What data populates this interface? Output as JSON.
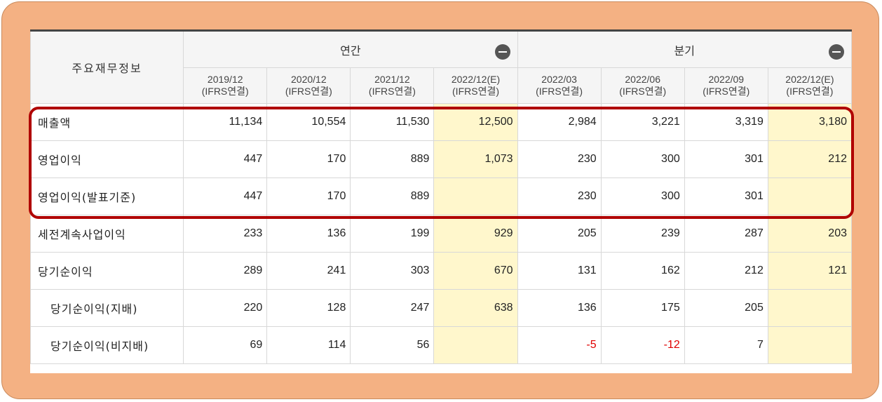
{
  "table": {
    "corner_label": "주요재무정보",
    "groups": [
      {
        "label": "연간"
      },
      {
        "label": "분기"
      }
    ],
    "columns": [
      {
        "period": "2019/12",
        "basis": "(IFRS연결)",
        "estimate": false
      },
      {
        "period": "2020/12",
        "basis": "(IFRS연결)",
        "estimate": false
      },
      {
        "period": "2021/12",
        "basis": "(IFRS연결)",
        "estimate": false
      },
      {
        "period": "2022/12(E)",
        "basis": "(IFRS연결)",
        "estimate": true
      },
      {
        "period": "2022/03",
        "basis": "(IFRS연결)",
        "estimate": false
      },
      {
        "period": "2022/06",
        "basis": "(IFRS연결)",
        "estimate": false
      },
      {
        "period": "2022/09",
        "basis": "(IFRS연결)",
        "estimate": false
      },
      {
        "period": "2022/12(E)",
        "basis": "(IFRS연결)",
        "estimate": true
      }
    ],
    "rows": [
      {
        "label": "매출액",
        "sub": false,
        "values": [
          "11,134",
          "10,554",
          "11,530",
          "12,500",
          "2,984",
          "3,221",
          "3,319",
          "3,180"
        ]
      },
      {
        "label": "영업이익",
        "sub": false,
        "values": [
          "447",
          "170",
          "889",
          "1,073",
          "230",
          "300",
          "301",
          "212"
        ]
      },
      {
        "label": "영업이익(발표기준)",
        "sub": false,
        "values": [
          "447",
          "170",
          "889",
          "",
          "230",
          "300",
          "301",
          ""
        ]
      },
      {
        "label": "세전계속사업이익",
        "sub": false,
        "values": [
          "233",
          "136",
          "199",
          "929",
          "205",
          "239",
          "287",
          "203"
        ]
      },
      {
        "label": "당기순이익",
        "sub": false,
        "values": [
          "289",
          "241",
          "303",
          "670",
          "131",
          "162",
          "212",
          "121"
        ]
      },
      {
        "label": "당기순이익(지배)",
        "sub": true,
        "values": [
          "220",
          "128",
          "247",
          "638",
          "136",
          "175",
          "205",
          ""
        ]
      },
      {
        "label": "당기순이익(비지배)",
        "sub": true,
        "values": [
          "69",
          "114",
          "56",
          "",
          "-5",
          "-12",
          "7",
          ""
        ]
      }
    ]
  },
  "colors": {
    "frame": "#f4b183",
    "estimate_cell": "#fff7cc",
    "highlight_box": "#b00000",
    "negative_value": "#e00000"
  },
  "icons": {
    "collapse": "minus-circle-icon"
  }
}
